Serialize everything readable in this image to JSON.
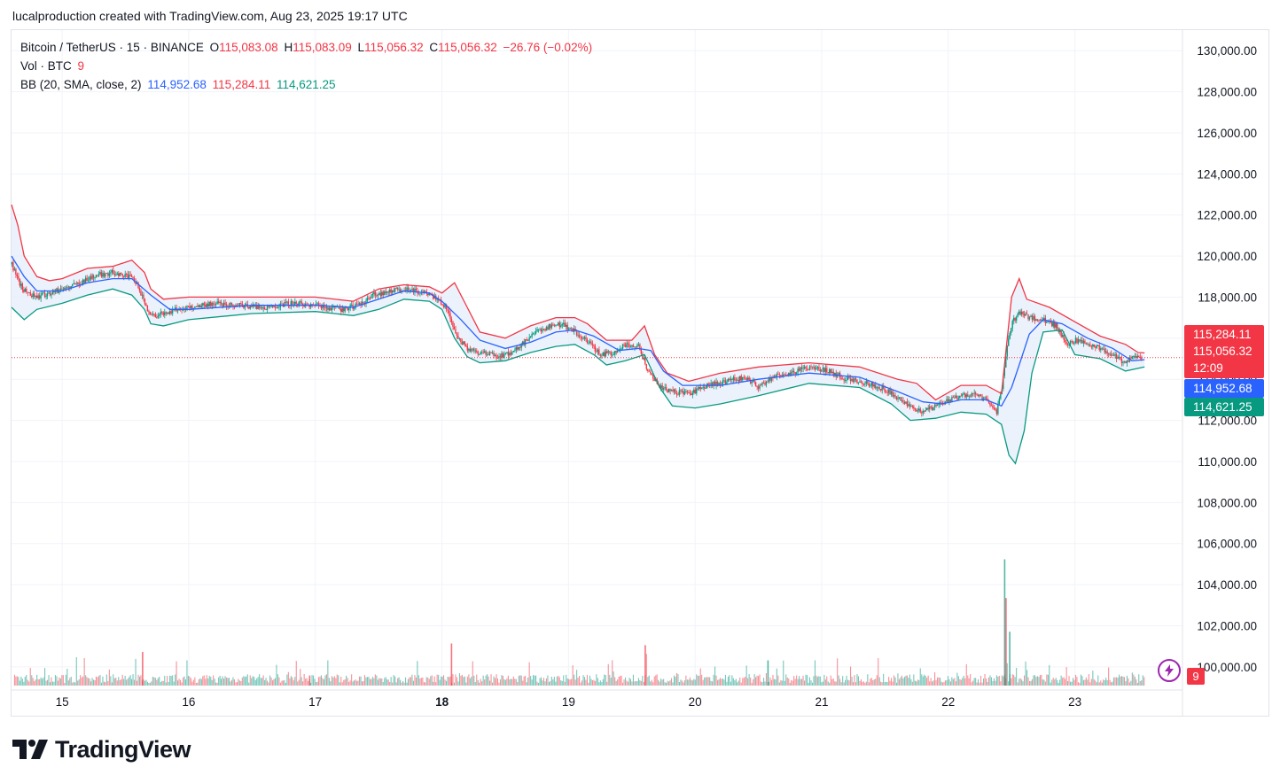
{
  "caption": "lucalproduction created with TradingView.com, Aug 23, 2025 19:17 UTC",
  "legend": {
    "symbol": "Bitcoin / TetherUS · 15 · BINANCE",
    "o_label": "O",
    "o_value": "115,083.08",
    "h_label": "H",
    "h_value": "115,083.09",
    "l_label": "L",
    "l_value": "115,056.32",
    "c_label": "C",
    "c_value": "115,056.32",
    "change": "−26.76 (−0.02%)",
    "vol_label": "Vol · BTC",
    "vol_value": "9",
    "bb_label": "BB (20, SMA, close, 2)",
    "bb_basis": "114,952.68",
    "bb_upper": "115,284.11",
    "bb_lower": "114,621.25"
  },
  "brand": {
    "name": "TradingView"
  },
  "alert_icon": "lightning-icon",
  "colors": {
    "up": "#089981",
    "down": "#f23645",
    "basis": "#2962ff",
    "upper": "#f23645",
    "lower": "#089981",
    "band_fill": "#e3ecfa"
  },
  "chart_data": {
    "type": "candlestick",
    "symbol": "Bitcoin / TetherUS",
    "interval": "15",
    "exchange": "BINANCE",
    "y_axis_ticks": [
      "130,000.00",
      "128,000.00",
      "126,000.00",
      "124,000.00",
      "122,000.00",
      "120,000.00",
      "118,000.00",
      "116,000.00",
      "114,000.00",
      "112,000.00",
      "110,000.00",
      "108,000.00",
      "106,000.00",
      "104,000.00",
      "102,000.00",
      "100,000.00"
    ],
    "y_tick_values": [
      130000,
      128000,
      126000,
      124000,
      122000,
      120000,
      118000,
      116000,
      114000,
      112000,
      110000,
      108000,
      106000,
      104000,
      102000,
      100000
    ],
    "ylim": [
      99000,
      131000
    ],
    "x_axis_ticks": [
      "15",
      "16",
      "17",
      "18",
      "19",
      "20",
      "21",
      "22",
      "23"
    ],
    "x_tick_day_index": [
      0,
      1,
      2,
      3,
      4,
      5,
      6,
      7,
      8
    ],
    "x_range_days": [
      -0.4,
      8.85
    ],
    "grid": true,
    "price_line": 115056.32,
    "price_labels": [
      {
        "text": "115,284.11",
        "value": 115284.11,
        "color": "#f23645"
      },
      {
        "text": "115,056.32",
        "value": 115056.32,
        "color": "#f23645"
      },
      {
        "text": "12:09",
        "value": 115056.32,
        "color": "#f23645"
      },
      {
        "text": "114,952.68",
        "value": 114952.68,
        "color": "#2962ff"
      },
      {
        "text": "114,621.25",
        "value": 114621.25,
        "color": "#089981"
      }
    ],
    "volume_label": "9",
    "price_path": [
      [
        -0.4,
        119600
      ],
      [
        -0.35,
        118800
      ],
      [
        -0.3,
        118300
      ],
      [
        -0.2,
        118000
      ],
      [
        -0.1,
        118200
      ],
      [
        0,
        118400
      ],
      [
        0.1,
        118600
      ],
      [
        0.2,
        118900
      ],
      [
        0.3,
        119100
      ],
      [
        0.4,
        119200
      ],
      [
        0.5,
        119050
      ],
      [
        0.55,
        118900
      ],
      [
        0.6,
        118500
      ],
      [
        0.65,
        117700
      ],
      [
        0.7,
        117100
      ],
      [
        0.8,
        117200
      ],
      [
        0.9,
        117400
      ],
      [
        1.0,
        117500
      ],
      [
        1.2,
        117700
      ],
      [
        1.4,
        117600
      ],
      [
        1.6,
        117500
      ],
      [
        1.8,
        117700
      ],
      [
        2.0,
        117600
      ],
      [
        2.2,
        117400
      ],
      [
        2.35,
        117600
      ],
      [
        2.45,
        118100
      ],
      [
        2.6,
        118300
      ],
      [
        2.75,
        118400
      ],
      [
        2.9,
        118100
      ],
      [
        3.0,
        117700
      ],
      [
        3.05,
        117300
      ],
      [
        3.1,
        116200
      ],
      [
        3.2,
        115500
      ],
      [
        3.3,
        115300
      ],
      [
        3.45,
        115100
      ],
      [
        3.55,
        115300
      ],
      [
        3.65,
        115800
      ],
      [
        3.75,
        116300
      ],
      [
        3.85,
        116600
      ],
      [
        3.95,
        116700
      ],
      [
        4.05,
        116300
      ],
      [
        4.15,
        115800
      ],
      [
        4.25,
        115200
      ],
      [
        4.35,
        115300
      ],
      [
        4.45,
        115700
      ],
      [
        4.55,
        115600
      ],
      [
        4.62,
        114500
      ],
      [
        4.72,
        113600
      ],
      [
        4.82,
        113400
      ],
      [
        4.95,
        113300
      ],
      [
        5.1,
        113700
      ],
      [
        5.25,
        113900
      ],
      [
        5.4,
        114100
      ],
      [
        5.5,
        113600
      ],
      [
        5.6,
        114100
      ],
      [
        5.75,
        114300
      ],
      [
        5.9,
        114600
      ],
      [
        6.05,
        114400
      ],
      [
        6.2,
        114000
      ],
      [
        6.35,
        113800
      ],
      [
        6.5,
        113500
      ],
      [
        6.6,
        113100
      ],
      [
        6.7,
        112700
      ],
      [
        6.8,
        112400
      ],
      [
        6.9,
        112700
      ],
      [
        7.0,
        113000
      ],
      [
        7.1,
        113200
      ],
      [
        7.2,
        113300
      ],
      [
        7.3,
        113000
      ],
      [
        7.38,
        112400
      ],
      [
        7.42,
        113500
      ],
      [
        7.46,
        115500
      ],
      [
        7.5,
        116800
      ],
      [
        7.56,
        117200
      ],
      [
        7.65,
        117000
      ],
      [
        7.75,
        116900
      ],
      [
        7.85,
        116600
      ],
      [
        7.93,
        115700
      ],
      [
        8.0,
        115900
      ],
      [
        8.1,
        115700
      ],
      [
        8.2,
        115500
      ],
      [
        8.3,
        115200
      ],
      [
        8.38,
        114800
      ],
      [
        8.45,
        115000
      ],
      [
        8.53,
        115056
      ]
    ],
    "upper_band_path": [
      [
        -0.4,
        122500
      ],
      [
        -0.35,
        121500
      ],
      [
        -0.3,
        120000
      ],
      [
        -0.2,
        119000
      ],
      [
        -0.1,
        118800
      ],
      [
        0,
        118900
      ],
      [
        0.2,
        119400
      ],
      [
        0.4,
        119500
      ],
      [
        0.55,
        119800
      ],
      [
        0.65,
        119200
      ],
      [
        0.7,
        118400
      ],
      [
        0.8,
        117900
      ],
      [
        1.0,
        118000
      ],
      [
        1.5,
        118000
      ],
      [
        2.0,
        118000
      ],
      [
        2.3,
        117800
      ],
      [
        2.5,
        118400
      ],
      [
        2.7,
        118600
      ],
      [
        2.9,
        118500
      ],
      [
        3.0,
        118200
      ],
      [
        3.1,
        118700
      ],
      [
        3.2,
        117500
      ],
      [
        3.3,
        116300
      ],
      [
        3.5,
        116000
      ],
      [
        3.7,
        116600
      ],
      [
        3.9,
        117000
      ],
      [
        4.05,
        117000
      ],
      [
        4.15,
        116700
      ],
      [
        4.3,
        115900
      ],
      [
        4.5,
        115900
      ],
      [
        4.6,
        116600
      ],
      [
        4.68,
        115200
      ],
      [
        4.78,
        114300
      ],
      [
        4.95,
        113900
      ],
      [
        5.2,
        114300
      ],
      [
        5.5,
        114600
      ],
      [
        5.9,
        114800
      ],
      [
        6.3,
        114600
      ],
      [
        6.6,
        114000
      ],
      [
        6.75,
        113800
      ],
      [
        6.9,
        113000
      ],
      [
        7.1,
        113700
      ],
      [
        7.3,
        113700
      ],
      [
        7.42,
        113300
      ],
      [
        7.5,
        118000
      ],
      [
        7.56,
        118900
      ],
      [
        7.62,
        117900
      ],
      [
        7.8,
        117500
      ],
      [
        8.0,
        116800
      ],
      [
        8.2,
        116100
      ],
      [
        8.4,
        115700
      ],
      [
        8.5,
        115300
      ],
      [
        8.55,
        115284
      ]
    ],
    "basis_path": [
      [
        -0.4,
        120000
      ],
      [
        -0.3,
        119000
      ],
      [
        -0.2,
        118300
      ],
      [
        0,
        118300
      ],
      [
        0.2,
        118700
      ],
      [
        0.4,
        118900
      ],
      [
        0.55,
        118900
      ],
      [
        0.7,
        118100
      ],
      [
        0.85,
        117400
      ],
      [
        1.0,
        117400
      ],
      [
        1.5,
        117600
      ],
      [
        2.0,
        117600
      ],
      [
        2.3,
        117500
      ],
      [
        2.5,
        117900
      ],
      [
        2.7,
        118300
      ],
      [
        2.9,
        118200
      ],
      [
        3.0,
        117800
      ],
      [
        3.15,
        116900
      ],
      [
        3.3,
        115900
      ],
      [
        3.5,
        115500
      ],
      [
        3.7,
        115800
      ],
      [
        3.9,
        116300
      ],
      [
        4.05,
        116400
      ],
      [
        4.2,
        116100
      ],
      [
        4.4,
        115400
      ],
      [
        4.55,
        115500
      ],
      [
        4.65,
        115400
      ],
      [
        4.75,
        114400
      ],
      [
        4.9,
        113700
      ],
      [
        5.2,
        113700
      ],
      [
        5.5,
        114000
      ],
      [
        5.9,
        114300
      ],
      [
        6.3,
        114100
      ],
      [
        6.6,
        113400
      ],
      [
        6.8,
        112900
      ],
      [
        6.95,
        112800
      ],
      [
        7.1,
        113000
      ],
      [
        7.3,
        113000
      ],
      [
        7.42,
        112700
      ],
      [
        7.5,
        113600
      ],
      [
        7.56,
        114700
      ],
      [
        7.64,
        116200
      ],
      [
        7.75,
        116900
      ],
      [
        7.9,
        116700
      ],
      [
        8.1,
        116000
      ],
      [
        8.3,
        115500
      ],
      [
        8.45,
        114900
      ],
      [
        8.55,
        114953
      ]
    ],
    "lower_band_path": [
      [
        -0.4,
        117500
      ],
      [
        -0.3,
        116900
      ],
      [
        -0.2,
        117400
      ],
      [
        0,
        117700
      ],
      [
        0.2,
        118100
      ],
      [
        0.4,
        118400
      ],
      [
        0.55,
        118100
      ],
      [
        0.65,
        117400
      ],
      [
        0.7,
        116700
      ],
      [
        0.8,
        116600
      ],
      [
        1.0,
        116900
      ],
      [
        1.5,
        117200
      ],
      [
        2.0,
        117300
      ],
      [
        2.3,
        117100
      ],
      [
        2.5,
        117400
      ],
      [
        2.7,
        117900
      ],
      [
        2.9,
        117800
      ],
      [
        3.0,
        117400
      ],
      [
        3.1,
        116000
      ],
      [
        3.2,
        115100
      ],
      [
        3.3,
        114800
      ],
      [
        3.5,
        114900
      ],
      [
        3.7,
        115300
      ],
      [
        3.9,
        115600
      ],
      [
        4.05,
        115700
      ],
      [
        4.2,
        115200
      ],
      [
        4.3,
        114700
      ],
      [
        4.45,
        114900
      ],
      [
        4.6,
        115200
      ],
      [
        4.72,
        113600
      ],
      [
        4.82,
        112700
      ],
      [
        5.0,
        112600
      ],
      [
        5.2,
        112800
      ],
      [
        5.5,
        113200
      ],
      [
        5.9,
        113800
      ],
      [
        6.3,
        113600
      ],
      [
        6.55,
        112800
      ],
      [
        6.7,
        112000
      ],
      [
        6.9,
        112100
      ],
      [
        7.1,
        112400
      ],
      [
        7.3,
        112300
      ],
      [
        7.42,
        111800
      ],
      [
        7.48,
        110300
      ],
      [
        7.53,
        109900
      ],
      [
        7.6,
        111500
      ],
      [
        7.66,
        114300
      ],
      [
        7.75,
        116300
      ],
      [
        7.9,
        116400
      ],
      [
        8.0,
        115200
      ],
      [
        8.2,
        115000
      ],
      [
        8.4,
        114400
      ],
      [
        8.55,
        114600
      ]
    ],
    "volume_spikes": [
      {
        "day": 7.44,
        "value": 0.75,
        "up": true
      },
      {
        "day": 7.45,
        "value": 0.52,
        "up": false
      },
      {
        "day": 7.48,
        "value": 0.32,
        "up": true
      },
      {
        "day": 3.07,
        "value": 0.25,
        "up": false
      },
      {
        "day": 4.6,
        "value": 0.24,
        "up": false
      },
      {
        "day": 0.63,
        "value": 0.2,
        "up": false
      },
      {
        "day": 5.57,
        "value": 0.15,
        "up": true
      },
      {
        "day": 1.95,
        "value": 0.06,
        "up": false
      }
    ]
  }
}
